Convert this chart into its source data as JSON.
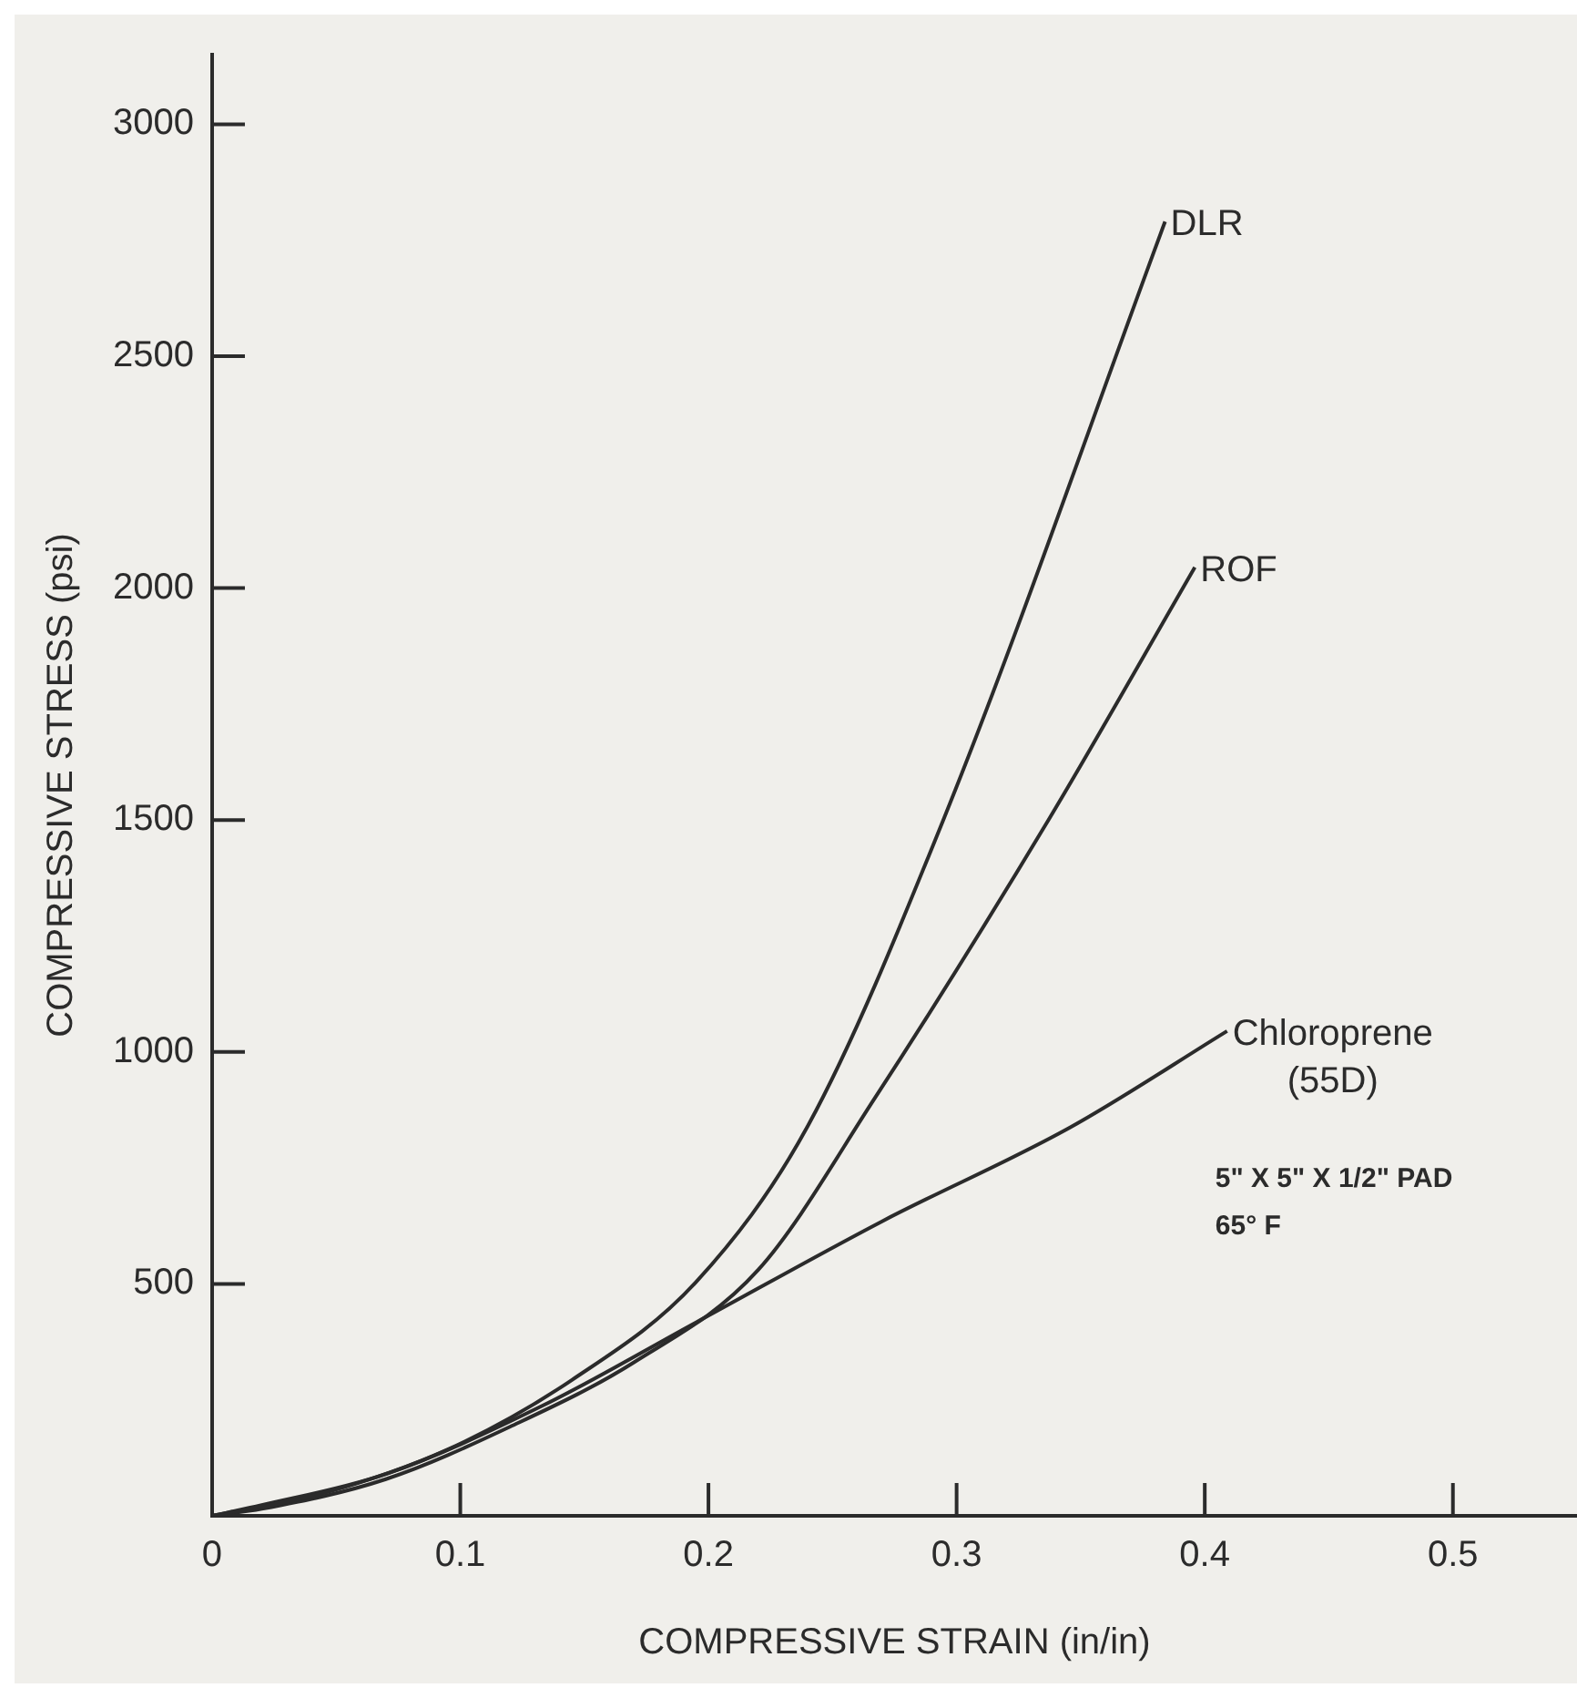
{
  "chart_data": {
    "type": "line",
    "xlabel": "COMPRESSIVE STRAIN (in/in)",
    "ylabel": "COMPRESSIVE STRESS (psi)",
    "series": [
      {
        "name": "DLR",
        "color": "#2b2b2b",
        "x": [
          0,
          0.045,
          0.095,
          0.145,
          0.195,
          0.24,
          0.295,
          0.384
        ],
        "values": [
          0,
          49,
          143,
          293,
          504,
          840,
          1505,
          2790
        ]
      },
      {
        "name": "ROF",
        "color": "#2b2b2b",
        "x": [
          0,
          0.02,
          0.07,
          0.12,
          0.17,
          0.22,
          0.267,
          0.337,
          0.396
        ],
        "values": [
          0,
          15,
          79,
          192,
          331,
          530,
          900,
          1500,
          2045
        ]
      },
      {
        "name": "Chloroprene (55D)",
        "color": "#2b2b2b",
        "x": [
          0,
          0.02,
          0.07,
          0.133,
          0.195,
          0.27,
          0.346,
          0.409
        ],
        "values": [
          0,
          23,
          90,
          237,
          417,
          635,
          838,
          1045
        ]
      }
    ],
    "annotations": [
      "5\" X 5\" X 1/2\" PAD",
      "65° F"
    ],
    "xlim": [
      0,
      0.55
    ],
    "xticks": [
      0,
      0.1,
      0.2,
      0.3,
      0.4,
      0.5
    ],
    "ylim": [
      0,
      3150
    ],
    "yticks": [
      {
        "value": 0,
        "label": null
      },
      500,
      1000,
      1500,
      2000,
      2500,
      3000
    ],
    "grid": false,
    "legend": false,
    "marker": "none",
    "line_style": "solid"
  }
}
